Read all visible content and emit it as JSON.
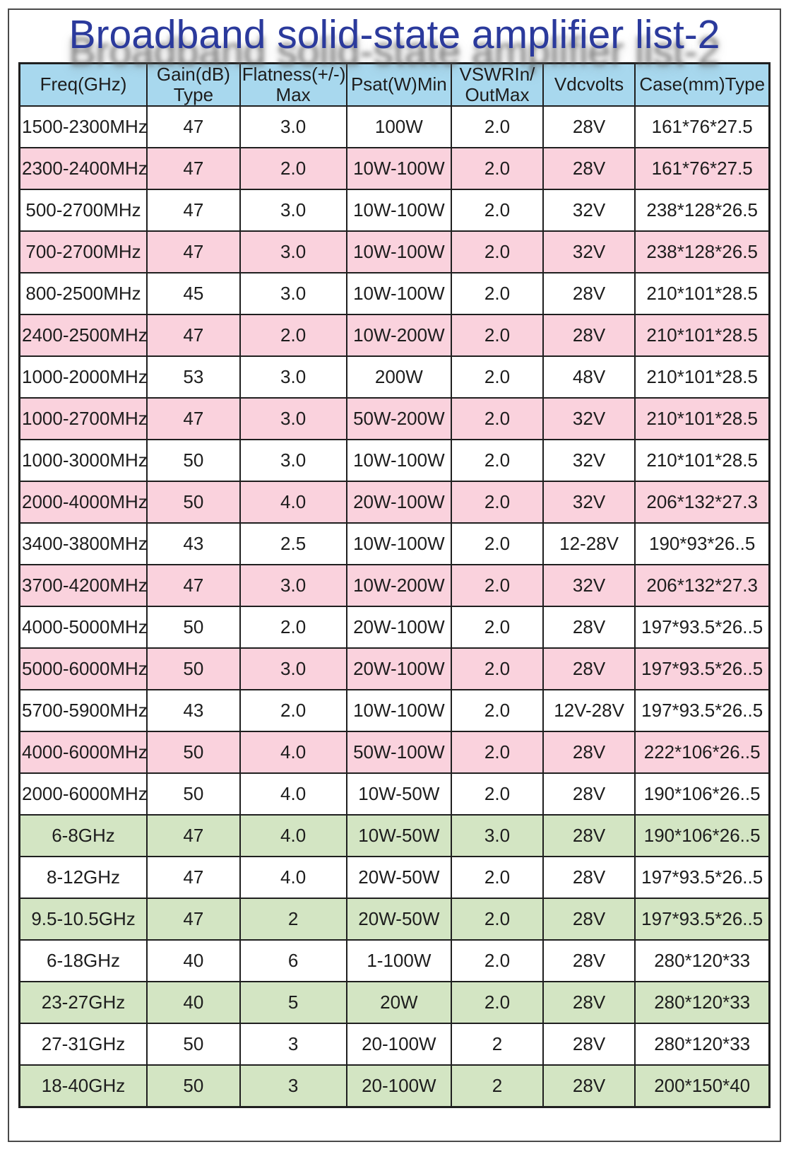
{
  "title": "Broadband solid-state amplifier list-2",
  "colors": {
    "title_color": "#2b3a9c",
    "header_bg": "#a8d8ee",
    "pink_row": "#fad2dd",
    "green_row": "#d3e5c3",
    "white_row": "#ffffff",
    "border": "#1f1f1f"
  },
  "table": {
    "columns": [
      "Freq(GHz)",
      "Gain(dB)\nType",
      "Flatness(+/-)\nMax",
      "Psat(W)Min",
      "VSWRIn/\nOutMax",
      "Vdcvolts",
      "Case(mm)Type"
    ],
    "rows": [
      {
        "color": "white",
        "cells": [
          "1500-2300MHz",
          "47",
          "3.0",
          "100W",
          "2.0",
          "28V",
          "161*76*27.5"
        ]
      },
      {
        "color": "pink",
        "cells": [
          "2300-2400MHz",
          "47",
          "2.0",
          "10W-100W",
          "2.0",
          "28V",
          "161*76*27.5"
        ]
      },
      {
        "color": "white",
        "cells": [
          "500-2700MHz",
          "47",
          "3.0",
          "10W-100W",
          "2.0",
          "32V",
          "238*128*26.5"
        ]
      },
      {
        "color": "pink",
        "cells": [
          "700-2700MHz",
          "47",
          "3.0",
          "10W-100W",
          "2.0",
          "32V",
          "238*128*26.5"
        ]
      },
      {
        "color": "white",
        "cells": [
          "800-2500MHz",
          "45",
          "3.0",
          "10W-100W",
          "2.0",
          "28V",
          "210*101*28.5"
        ]
      },
      {
        "color": "pink",
        "cells": [
          "2400-2500MHz",
          "47",
          "2.0",
          "10W-200W",
          "2.0",
          "28V",
          "210*101*28.5"
        ]
      },
      {
        "color": "white",
        "cells": [
          "1000-2000MHz",
          "53",
          "3.0",
          "200W",
          "2.0",
          "48V",
          "210*101*28.5"
        ]
      },
      {
        "color": "pink",
        "cells": [
          "1000-2700MHz",
          "47",
          "3.0",
          "50W-200W",
          "2.0",
          "32V",
          "210*101*28.5"
        ]
      },
      {
        "color": "white",
        "cells": [
          "1000-3000MHz",
          "50",
          "3.0",
          "10W-100W",
          "2.0",
          "32V",
          "210*101*28.5"
        ]
      },
      {
        "color": "pink",
        "cells": [
          "2000-4000MHz",
          "50",
          "4.0",
          "20W-100W",
          "2.0",
          "32V",
          "206*132*27.3"
        ]
      },
      {
        "color": "white",
        "cells": [
          "3400-3800MHz",
          "43",
          "2.5",
          "10W-100W",
          "2.0",
          "12-28V",
          "190*93*26..5"
        ]
      },
      {
        "color": "pink",
        "cells": [
          "3700-4200MHz",
          "47",
          "3.0",
          "10W-200W",
          "2.0",
          "32V",
          "206*132*27.3"
        ]
      },
      {
        "color": "white",
        "cells": [
          "4000-5000MHz",
          "50",
          "2.0",
          "20W-100W",
          "2.0",
          "28V",
          "197*93.5*26..5"
        ]
      },
      {
        "color": "pink",
        "cells": [
          "5000-6000MHz",
          "50",
          "3.0",
          "20W-100W",
          "2.0",
          "28V",
          "197*93.5*26..5"
        ]
      },
      {
        "color": "white",
        "cells": [
          "5700-5900MHz",
          "43",
          "2.0",
          "10W-100W",
          "2.0",
          "12V-28V",
          "197*93.5*26..5"
        ]
      },
      {
        "color": "pink",
        "cells": [
          "4000-6000MHz",
          "50",
          "4.0",
          "50W-100W",
          "2.0",
          "28V",
          "222*106*26..5"
        ]
      },
      {
        "color": "white",
        "cells": [
          "2000-6000MHz",
          "50",
          "4.0",
          "10W-50W",
          "2.0",
          "28V",
          "190*106*26..5"
        ]
      },
      {
        "color": "green",
        "cells": [
          "6-8GHz",
          "47",
          "4.0",
          "10W-50W",
          "3.0",
          "28V",
          "190*106*26..5"
        ]
      },
      {
        "color": "white",
        "cells": [
          "8-12GHz",
          "47",
          "4.0",
          "20W-50W",
          "2.0",
          "28V",
          "197*93.5*26..5"
        ]
      },
      {
        "color": "green",
        "cells": [
          "9.5-10.5GHz",
          "47",
          "2",
          "20W-50W",
          "2.0",
          "28V",
          "197*93.5*26..5"
        ]
      },
      {
        "color": "white",
        "cells": [
          "6-18GHz",
          "40",
          "6",
          "1-100W",
          "2.0",
          "28V",
          "280*120*33"
        ]
      },
      {
        "color": "green",
        "cells": [
          "23-27GHz",
          "40",
          "5",
          "20W",
          "2.0",
          "28V",
          "280*120*33"
        ]
      },
      {
        "color": "white",
        "cells": [
          "27-31GHz",
          "50",
          "3",
          "20-100W",
          "2",
          "28V",
          "280*120*33"
        ]
      },
      {
        "color": "green",
        "cells": [
          "18-40GHz",
          "50",
          "3",
          "20-100W",
          "2",
          "28V",
          "200*150*40"
        ]
      }
    ],
    "column_widths_pct": [
      17.0,
      12.4,
      14.2,
      14.0,
      12.2,
      12.3,
      17.9
    ]
  }
}
